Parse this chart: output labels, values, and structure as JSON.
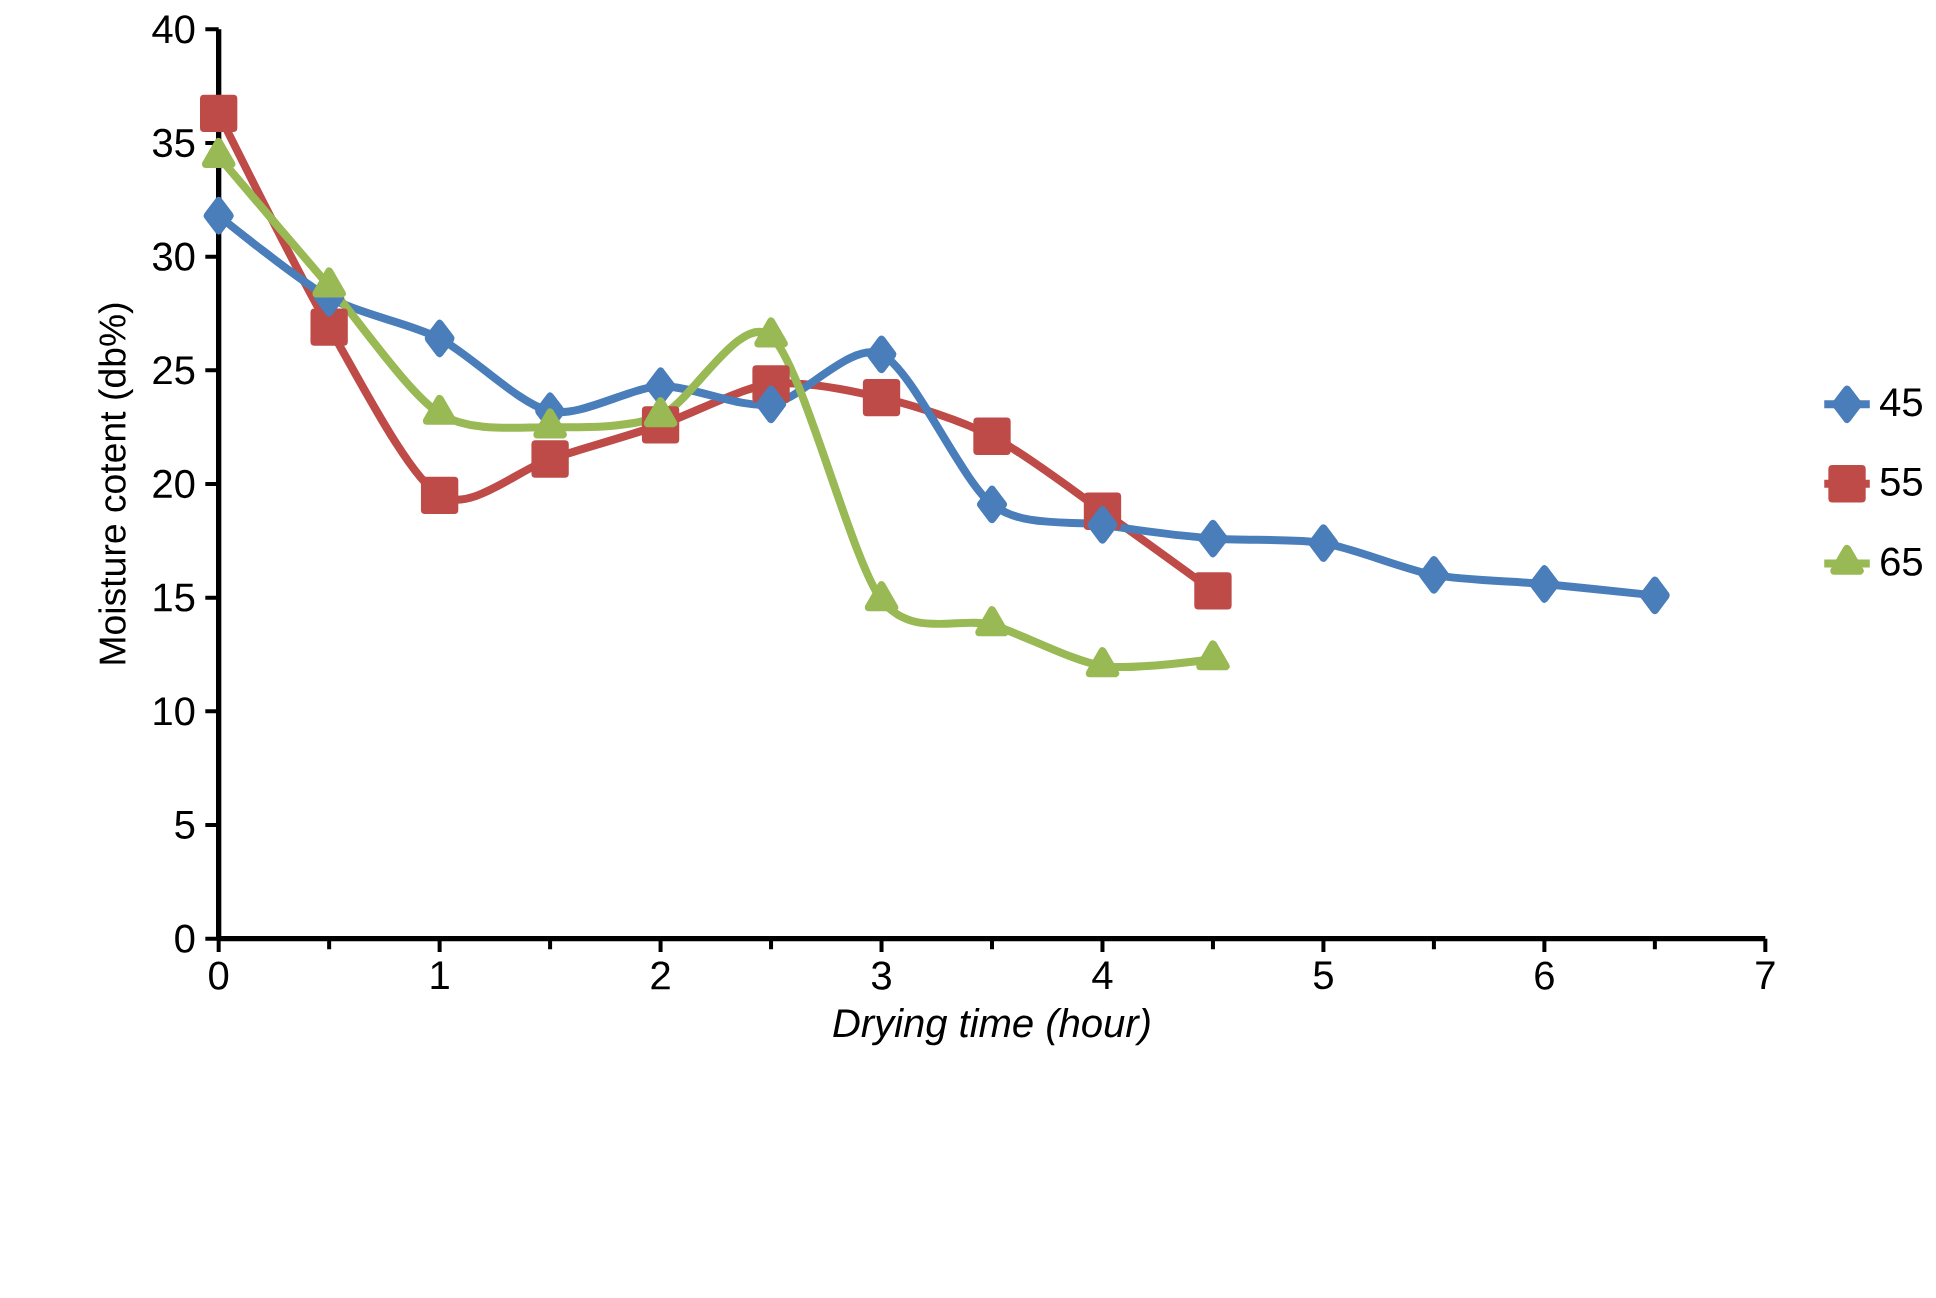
{
  "chart_data": {
    "type": "line",
    "xlabel": "Drying time (hour)",
    "ylabel": "Moisture cotent (db%)",
    "xlim": [
      0,
      7
    ],
    "xticks": [
      0,
      1,
      2,
      3,
      4,
      5,
      6,
      7
    ],
    "ylim": [
      0,
      40
    ],
    "yticks": [
      0,
      5,
      10,
      15,
      20,
      25,
      30,
      35,
      40
    ],
    "x": [
      0,
      0.5,
      1,
      1.5,
      2,
      2.5,
      3,
      3.5,
      4,
      4.5,
      5,
      5.5,
      6,
      6.5
    ],
    "legend": "right",
    "grid": false,
    "series": [
      {
        "name": "45",
        "color": "#4a7ebb",
        "marker": "diamond",
        "values": [
          31.8,
          28.2,
          26.4,
          23.2,
          24.3,
          23.5,
          25.7,
          19.1,
          18.2,
          17.6,
          17.4,
          16.0,
          15.6,
          15.1
        ]
      },
      {
        "name": "55",
        "color": "#be4b48",
        "marker": "square",
        "values": [
          36.3,
          26.9,
          19.5,
          21.1,
          22.6,
          24.4,
          23.8,
          22.1,
          18.8,
          15.3,
          null,
          null,
          null,
          null
        ]
      },
      {
        "name": "65",
        "color": "#98b954",
        "marker": "triangle",
        "values": [
          34.4,
          28.7,
          23.1,
          22.5,
          23.0,
          26.5,
          14.9,
          13.8,
          12.0,
          12.3,
          null,
          null,
          null,
          null
        ]
      }
    ]
  }
}
